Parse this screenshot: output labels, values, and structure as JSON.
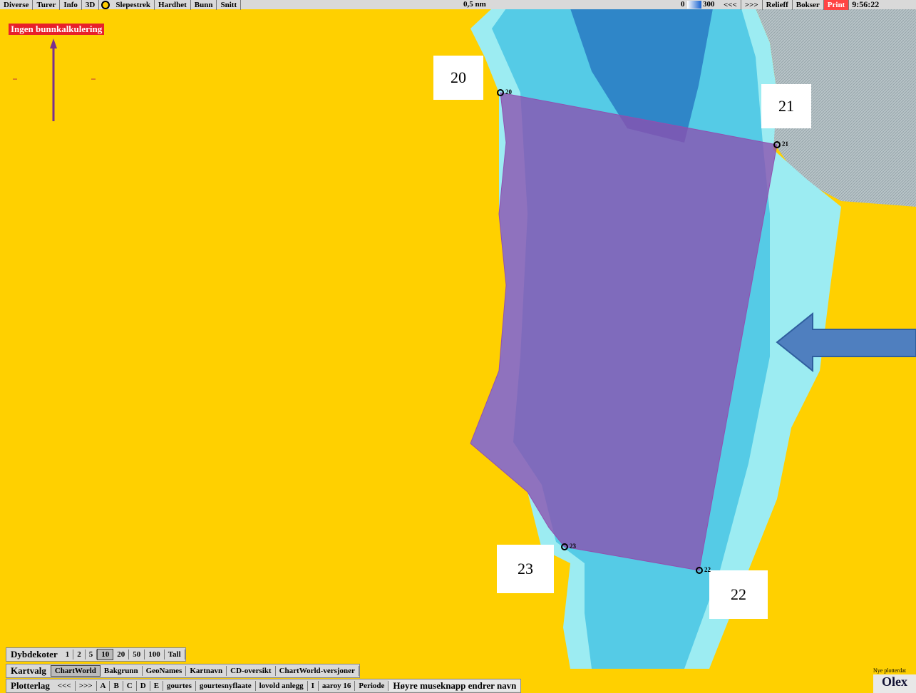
{
  "toolbar": {
    "left": [
      "Diverse",
      "Turer",
      "Info",
      "3D"
    ],
    "left2": [
      "Slepestrek",
      "Hardhet",
      "Bunn",
      "Snitt"
    ],
    "scale": "0,5 nm",
    "depth_min": "0",
    "depth_max": "300",
    "right": [
      "<<<",
      ">>>",
      "Relieff",
      "Bokser",
      "Print"
    ],
    "time": "9:56:22"
  },
  "alert": "Ingen bunnkalkulering",
  "waypoints": [
    {
      "label": "20",
      "marker": "20"
    },
    {
      "label": "21",
      "marker": "21"
    },
    {
      "label": "22",
      "marker": "22"
    },
    {
      "label": "23",
      "marker": "23"
    }
  ],
  "dybdekoter": {
    "label": "Dybdekoter",
    "buttons": [
      "1",
      "2",
      "5",
      "10",
      "20",
      "50",
      "100",
      "Tall"
    ]
  },
  "kartvalg": {
    "label": "Kartvalg",
    "buttons": [
      "ChartWorld",
      "Bakgrunn",
      "GeoNames",
      "Kartnavn",
      "CD-oversikt",
      "ChartWorld-versjoner"
    ]
  },
  "plotterlag": {
    "label": "Plotterlag",
    "buttons": [
      "<<<",
      ">>>",
      "A",
      "B",
      "C",
      "D",
      "E",
      "gourtes",
      "gourtesnyflaate",
      "lovold anlegg",
      "I",
      "aaroy 16",
      "Periode"
    ],
    "hint": "Høyre museknapp endrer navn"
  },
  "footer": {
    "note": "Nye plotterdat",
    "brand": "Olex"
  }
}
